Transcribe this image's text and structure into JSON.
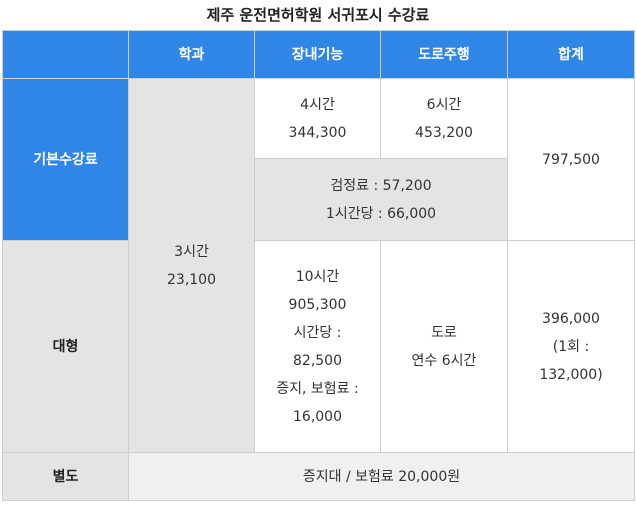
{
  "title": "제주 운전면허학원 서귀포시 수강료",
  "header": {
    "col1": "학과",
    "col2": "장내기능",
    "col3": "도로주행",
    "col4": "합계"
  },
  "rows": {
    "basic": {
      "label": "기본수강료",
      "course_hours": "4시간",
      "course_fee": "344,300",
      "road_hours": "6시간",
      "road_fee": "453,200",
      "total": "797,500",
      "exam_fee": "검정료 : 57,200",
      "hourly_fee": "1시간당 : 66,000"
    },
    "theory": {
      "hours": "3시간",
      "fee": "23,100"
    },
    "large": {
      "label": "대형",
      "course_lines": [
        "10시간",
        "905,300",
        "시간당 :",
        "82,500",
        "증지, 보험료 :",
        "16,000"
      ],
      "road_lines": [
        "도로",
        "연수 6시간"
      ],
      "total_lines": [
        "396,000",
        "(1회 :",
        "132,000)"
      ]
    },
    "extra": {
      "label": "별도",
      "value": "증지대 / 보험료 20,000원"
    }
  }
}
